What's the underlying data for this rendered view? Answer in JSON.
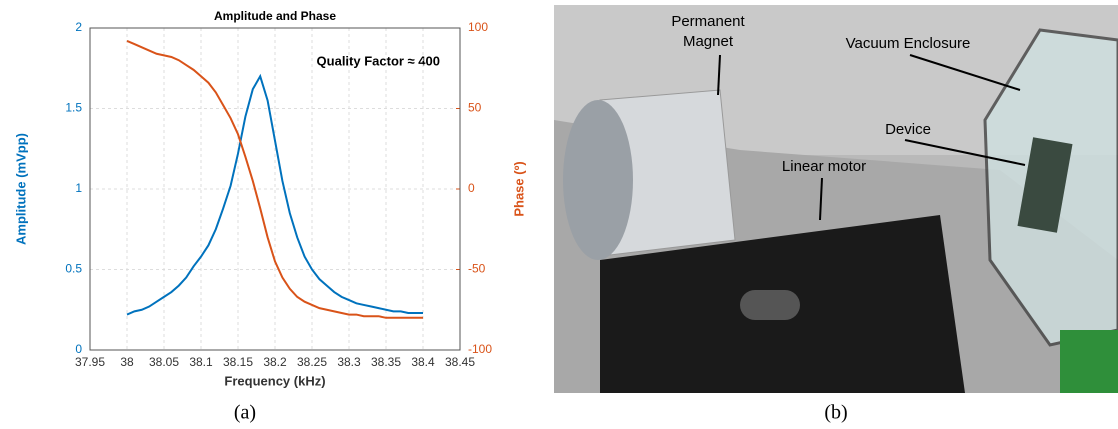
{
  "chart_data": {
    "type": "line",
    "title": "Amplitude and Phase",
    "annotation": "Quality Factor ≈ 400",
    "xlabel": "Frequency (kHz)",
    "ylabel": "Amplitude (mVpp)",
    "y2label": "Phase (º)",
    "x": [
      38.0,
      38.01,
      38.02,
      38.03,
      38.04,
      38.05,
      38.06,
      38.07,
      38.08,
      38.09,
      38.1,
      38.11,
      38.12,
      38.13,
      38.14,
      38.15,
      38.16,
      38.17,
      38.18,
      38.19,
      38.2,
      38.21,
      38.22,
      38.23,
      38.24,
      38.25,
      38.26,
      38.27,
      38.28,
      38.29,
      38.3,
      38.31,
      38.32,
      38.33,
      38.34,
      38.35,
      38.36,
      38.37,
      38.38,
      38.39,
      38.4
    ],
    "series": [
      {
        "color": "#0072bd",
        "values": [
          0.22,
          0.24,
          0.25,
          0.27,
          0.3,
          0.33,
          0.36,
          0.4,
          0.45,
          0.52,
          0.58,
          0.65,
          0.75,
          0.88,
          1.02,
          1.22,
          1.45,
          1.62,
          1.7,
          1.55,
          1.3,
          1.05,
          0.85,
          0.7,
          0.58,
          0.5,
          0.44,
          0.4,
          0.36,
          0.33,
          0.31,
          0.29,
          0.28,
          0.27,
          0.26,
          0.25,
          0.24,
          0.24,
          0.23,
          0.23,
          0.23
        ]
      },
      {
        "color": "#d95319",
        "axis": "y2",
        "values": [
          92,
          90,
          88,
          86,
          84,
          83,
          82,
          80,
          77,
          74,
          70,
          66,
          60,
          52,
          44,
          34,
          20,
          5,
          -12,
          -30,
          -45,
          -55,
          -62,
          -67,
          -70,
          -72,
          -74,
          -75,
          -76,
          -77,
          -78,
          -78,
          -79,
          -79,
          -79,
          -80,
          -80,
          -80,
          -80,
          -80,
          -80
        ]
      }
    ],
    "xlim": [
      37.95,
      38.45
    ],
    "xticks": [
      37.95,
      38,
      38.05,
      38.1,
      38.15,
      38.2,
      38.25,
      38.3,
      38.35,
      38.4,
      38.45
    ],
    "ylim": [
      0,
      2
    ],
    "yticks": [
      0,
      0.5,
      1,
      1.5,
      2
    ],
    "y2lim": [
      -100,
      100
    ],
    "y2ticks": [
      -100,
      -50,
      0,
      50,
      100
    ],
    "grid": true
  },
  "photo": {
    "labels": [
      "Permanent",
      "Magnet",
      "Vacuum Enclosure",
      "Device",
      "Linear motor"
    ]
  },
  "captions": [
    "(a)",
    "(b)"
  ]
}
